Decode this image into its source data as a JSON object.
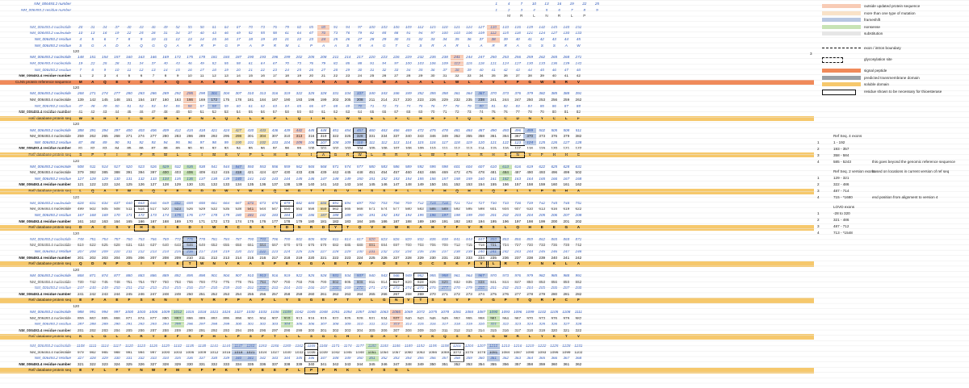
{
  "top_block": {
    "row_a_label": "NM_006493.2 number",
    "row_b_label": "NM_006493.2 residue number",
    "row_a_values": [
      "1",
      "4",
      "7",
      "10",
      "13",
      "16",
      "19",
      "22",
      "25"
    ],
    "row_b_values": [
      "1",
      "2",
      "3",
      "4",
      "5",
      "6",
      "7",
      "8",
      "9"
    ],
    "row_c_values": [
      "M",
      "R",
      "L",
      "N",
      "R",
      "L",
      "P"
    ]
  },
  "legend": {
    "items": [
      {
        "label": "outside updated protein sequence",
        "color": "#f8cbb5",
        "style": "fill"
      },
      {
        "label": "more than one type of mutation",
        "color": "#f9e2c8",
        "style": "fill"
      },
      {
        "label": "frameshift",
        "color": "#b7c7e2",
        "style": "fill"
      },
      {
        "label": "nonsense",
        "color": "#c7e3b5",
        "style": "fill"
      },
      {
        "label": "substitution",
        "color": "#e6e6e6",
        "style": "fill"
      },
      {
        "label": "exon / intron boundary",
        "color": "#111111",
        "style": "dash"
      },
      {
        "label": "glycosylation site",
        "color": "#111111",
        "style": "dashbox"
      },
      {
        "label": "signal peptide",
        "color": "#f08a5a",
        "style": "fill"
      },
      {
        "label": "predicted transmembrane domain",
        "color": "#9aa0a6",
        "style": "fill"
      },
      {
        "label": "soluble domain",
        "color": "#f6c86c",
        "style": "fill"
      },
      {
        "label": "residue shown to be necessary for thioesterase",
        "color": "#111111",
        "style": "box"
      }
    ],
    "refseq_heading": "Ref Seq. 4 exons",
    "refseq_rows": [
      {
        "n": "1",
        "t": "1 - 192"
      },
      {
        "n": "2",
        "t": "193 - 357"
      },
      {
        "n": "3",
        "t": "358 - 584"
      },
      {
        "n": "4",
        "t": "585 - 5243"
      }
    ],
    "refseq_note": "this goes beyond the genomic reference sequence",
    "refseq2_heading": "Ref Seq. 2 version exons",
    "refseq2_note": "based on locations in current version of ref seq",
    "refseq2_rows": [
      {
        "n": "1",
        "t": "129 - 321"
      },
      {
        "n": "2",
        "t": "322 - 486"
      },
      {
        "n": "3",
        "t": "487 - 714"
      },
      {
        "n": "4",
        "t": "715 - *1680"
      }
    ],
    "refseq2_end_note": "end position from alignment to version 4",
    "lovd_heading": "LOVD exons",
    "lovd_rows": [
      {
        "n": "1",
        "t": "-28 to 320"
      },
      {
        "n": "2",
        "t": "321 - 486"
      },
      {
        "n": "3",
        "t": "487 - 712"
      },
      {
        "n": "4",
        "t": "713 - *1548"
      }
    ],
    "side_number": "3"
  },
  "blocks": [
    {
      "rows": [
        {
          "label": "NM_006493.4 nucleotide",
          "kind": "blue",
          "start": 28,
          "step": 3,
          "count": 42
        },
        {
          "label": "NM_006493.2 nucleotide",
          "kind": "blue",
          "start": 10,
          "step": 3,
          "count": 42
        },
        {
          "label": "NM_006493.2 residue",
          "kind": "blue",
          "start": 4,
          "step": 1,
          "count": 42
        },
        {
          "label": "NM_006493.2 residue",
          "kind": "blue-seq",
          "seq": "SGADAQGQAPRPGPAPRMLPAASRAGTCSRARLARRAGSSAW"
        }
      ]
    },
    {
      "rows": [
        {
          "label": "NM_006493.2 nucleotide",
          "kind": "blue",
          "start": 148,
          "step": 3,
          "count": 42
        },
        {
          "label": "NM_006493.4 nucleotide",
          "kind": "blue",
          "start": 19,
          "step": 3,
          "count": 42
        },
        {
          "label": "NM_006493.2 residue",
          "kind": "blue",
          "start": 7,
          "step": 1,
          "count": 42
        },
        {
          "label": "NM_006493.4 residue number",
          "kind": "bold",
          "start": 1,
          "step": 1,
          "count": 42
        },
        {
          "label": "CLN5 protein reference sequence",
          "kind": "protein-orange",
          "seq": "MAQEVDTAQGAEMRRGAGAARASWCWALALLWLAVVPGWSRV"
        }
      ]
    },
    {
      "rows": [
        {
          "label": "NM_006493.2 nucleotide",
          "kind": "blue",
          "start": 268,
          "step": 3,
          "count": 42
        },
        {
          "label": "NM_006493.4 nucleotide",
          "kind": "plain",
          "start": 139,
          "step": 3,
          "count": 42
        },
        {
          "label": "NM_006493.2 residue",
          "kind": "blue",
          "start": 47,
          "step": 1,
          "count": 42
        },
        {
          "label": "NM_006493.4 residue number",
          "kind": "bold",
          "start": 41,
          "step": 1,
          "count": 42
        },
        {
          "label": "Ref/ database protein seq",
          "kind": "protein",
          "seq": "WSRVTGPWEPNAQALRPLQIHLWGELFCHRFYQSRCDNYCLF"
        }
      ]
    },
    {
      "rows": [
        {
          "label": "NM_006493.2 nucleotide",
          "kind": "blue",
          "start": 388,
          "step": 3,
          "count": 42
        },
        {
          "label": "NM_006493.4 nucleotide",
          "kind": "plain",
          "start": 259,
          "step": 3,
          "count": 42
        },
        {
          "label": "NM_006493.2 residue",
          "kind": "blue",
          "start": 87,
          "step": 1,
          "count": 42
        },
        {
          "label": "NM_006493.4 residue number",
          "kind": "bold",
          "start": 81,
          "step": 1,
          "count": 42
        },
        {
          "label": "Ref/ database protein seq",
          "kind": "protein",
          "seq": "SPYIHPRWLCIMKVPLHEVIAGRWLRRVLWTTLRHSNVFHHC"
        }
      ]
    },
    {
      "rows": [
        {
          "label": "NM_006493.2 nucleotide",
          "kind": "blue",
          "start": 508,
          "step": 3,
          "count": 42
        },
        {
          "label": "NM_006493.4 nucleotide",
          "kind": "plain",
          "start": 379,
          "step": 3,
          "count": 42
        },
        {
          "label": "NM_006493.2 residue",
          "kind": "blue",
          "start": 127,
          "step": 1,
          "count": 42
        },
        {
          "label": "NM_006493.4 residue number",
          "kind": "bold",
          "start": 121,
          "step": 1,
          "count": 42
        },
        {
          "label": "Ref/ database protein seq",
          "kind": "protein",
          "seq": "LQATWGQVENDDWYWKQHGTTGVHSSFLLYHQHSQPLYPGHA"
        }
      ]
    },
    {
      "rows": [
        {
          "label": "NM_006493.2 nucleotide",
          "kind": "blue",
          "start": 628,
          "step": 3,
          "count": 42
        },
        {
          "label": "NM_006493.4 nucleotide",
          "kind": "plain",
          "start": 499,
          "step": 3,
          "count": 42
        },
        {
          "label": "NM_006493.2 residue",
          "kind": "blue",
          "start": 167,
          "step": 1,
          "count": 42
        },
        {
          "label": "NM_006493.4 residue number",
          "kind": "bold",
          "start": 161,
          "step": 1,
          "count": 42
        },
        {
          "label": "Ref/ database protein seq",
          "kind": "protein",
          "seq": "DACSVHGIEDIWRCSKTDNRDYTQVHWKAHYFVRSLQHEEGA"
        }
      ]
    },
    {
      "rows": [
        {
          "label": "NM_006493.2 nucleotide",
          "kind": "blue",
          "start": 748,
          "step": 3,
          "count": 42
        },
        {
          "label": "NM_006493.4 nucleotide",
          "kind": "plain",
          "start": 619,
          "step": 3,
          "count": 42
        },
        {
          "label": "NM_006493.2 residue",
          "kind": "blue",
          "start": 207,
          "step": 1,
          "count": 42
        },
        {
          "label": "NM_006493.4 residue number",
          "kind": "bold",
          "start": 201,
          "step": 1,
          "count": 42
        },
        {
          "label": "Ref/ database protein seq",
          "kind": "protein",
          "seq": "QDNPGIYYETWNVKASPEKGAETWFDSYDCSKFVLRTFNKLA"
        }
      ]
    },
    {
      "rows": [
        {
          "label": "NM_006493.2 nucleotide",
          "kind": "blue",
          "start": 868,
          "step": 3,
          "count": 42
        },
        {
          "label": "NM_006493.4 nucleotide",
          "kind": "plain",
          "start": 739,
          "step": 3,
          "count": 42
        },
        {
          "label": "NM_006493.2 residue",
          "kind": "blue",
          "start": 247,
          "step": 1,
          "count": 42
        },
        {
          "label": "NM_006493.4 residue number",
          "kind": "bold",
          "start": 241,
          "step": 1,
          "count": 42
        },
        {
          "label": "Ref/ database protein seq",
          "kind": "protein",
          "seq": "EFAEFSKNITYRFPAFLYSGEPTYLGNVTSEVFVGPTQRFCF"
        }
      ]
    },
    {
      "rows": [
        {
          "label": "NM_006493.2 nucleotide",
          "kind": "blue",
          "start": 988,
          "step": 3,
          "count": 42
        },
        {
          "label": "NM_006493.4 nucleotide",
          "kind": "plain",
          "start": 859,
          "step": 3,
          "count": 42
        },
        {
          "label": "NM_006493.2 residue",
          "kind": "blue",
          "start": 287,
          "step": 1,
          "count": 42
        },
        {
          "label": "NM_006493.4 residue number",
          "kind": "bold",
          "start": 281,
          "step": 1,
          "count": 42
        },
        {
          "label": "Ref/ database protein seq",
          "kind": "protein",
          "seq": "KLGLARYEFKPHLPSFTLLSGCHIDAVIVKQSRLGWRLYKTV"
        }
      ]
    },
    {
      "rows": [
        {
          "label": "NM_006493.2 nucleotide",
          "kind": "blue",
          "start": 1108,
          "step": 3,
          "count": 42
        },
        {
          "label": "NM_006493.4 nucleotide",
          "kind": "plain",
          "start": 979,
          "step": 3,
          "count": 42
        },
        {
          "label": "NM_006493.2 residue",
          "kind": "blue",
          "start": 327,
          "step": 1,
          "count": 42
        },
        {
          "label": "NM_006493.4 residue number",
          "kind": "bold",
          "start": 321,
          "step": 1,
          "count": 42
        },
        {
          "label": "Ref/ database protein seq",
          "kind": "protein",
          "seq": "EYLFYNWFMKFPKTYEEPLPPRKLTSGL"
        }
      ]
    }
  ],
  "separator_values": [
    "120",
    "120",
    "120",
    "120",
    "120",
    "120",
    "120",
    "120"
  ]
}
